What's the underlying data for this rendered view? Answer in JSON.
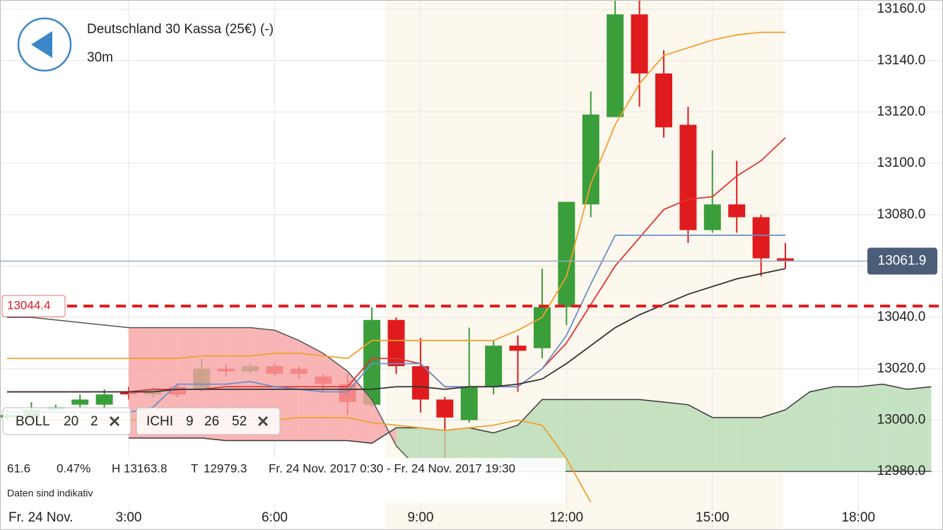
{
  "header": {
    "title": "Deutschland 30 Kassa (25€) (-)",
    "interval": "30m"
  },
  "indicators": [
    {
      "name": "BOLL",
      "params": [
        20,
        2
      ]
    },
    {
      "name": "ICHI",
      "params": [
        9,
        26,
        52
      ]
    }
  ],
  "info": {
    "change": 61.6,
    "change_pct": "0.47%",
    "high_label": "H",
    "high": 13163.8,
    "low_label": "T",
    "low": 12979.3,
    "range": "Fr. 24 Nov. 2017 0:30 - Fr. 24 Nov. 2017 19:30",
    "disclaimer": "Daten sind indikativ"
  },
  "chart_data": {
    "type": "candlestick",
    "date_label": "Fr. 24 Nov.",
    "x": [
      0.5,
      1,
      1.5,
      2,
      2.5,
      3,
      3.5,
      4,
      4.5,
      5,
      5.5,
      6,
      6.5,
      7,
      7.5,
      8,
      8.5,
      9,
      9.5,
      10,
      10.5,
      11,
      11.5,
      12,
      12.5,
      13,
      13.5,
      14,
      14.5,
      15,
      15.5,
      16,
      16.5
    ],
    "open": [
      13001,
      13001,
      13004,
      13006,
      13006,
      13011,
      13010,
      13013,
      13012,
      13020,
      13019,
      13021,
      13020,
      13017,
      13014,
      13006,
      13039,
      13021,
      13008,
      13000,
      13013,
      13029,
      13028,
      13044,
      13084,
      13118,
      13158,
      13135,
      13115,
      13074,
      13084,
      13079,
      13063
    ],
    "high": [
      13004,
      13007,
      13006,
      13010,
      13012,
      13013,
      13013,
      13014,
      13024,
      13022,
      13022,
      13022,
      13021,
      13018,
      13018,
      13044,
      13040,
      13032,
      13009,
      13036,
      13031,
      13033,
      13059,
      13085,
      13128,
      13164,
      13164,
      13144,
      13122,
      13105,
      13101,
      13080,
      13069
    ],
    "low": [
      13000,
      13000,
      13003,
      13005,
      13004,
      13008,
      13009,
      13009,
      13011,
      13017,
      13018,
      13017,
      13016,
      13011,
      13002,
      13005,
      13018,
      13003,
      12985,
      12999,
      13010,
      13011,
      13024,
      13037,
      13079,
      13118,
      13122,
      13110,
      13069,
      13073,
      13073,
      13056,
      13059
    ],
    "close": [
      13002,
      13004,
      13005,
      13008,
      13010,
      13010,
      13012,
      13010,
      13020,
      13019,
      13021,
      13018,
      13018,
      13014,
      13007,
      13039,
      13021,
      13008,
      13001,
      13013,
      13029,
      13027,
      13044,
      13085,
      13119,
      13158,
      13135,
      13114,
      13074,
      13084,
      13079,
      13063,
      13062
    ],
    "up_color": "#3a9e3a",
    "down_color": "#e01b1e",
    "series": [
      {
        "color": "#f0a030",
        "values": [
          13024,
          13024,
          13024,
          13024,
          13024,
          13024,
          13024,
          13024,
          13025,
          13025,
          13025,
          13026,
          13026,
          13025,
          13024,
          13031,
          13031,
          13031,
          13031,
          13031,
          13031,
          13035,
          13040,
          13056,
          13092,
          13115,
          13131,
          13142,
          13145,
          13148,
          13150,
          13151,
          13151
        ]
      },
      {
        "color": "#e03535",
        "values": [
          13011,
          13011,
          13011,
          13011,
          13011,
          13011,
          13012,
          13012,
          13012,
          13013,
          13013,
          13013,
          13013,
          13013,
          13013,
          13024,
          13024,
          13022,
          13013,
          13013,
          13013,
          13013,
          13020,
          13030,
          13045,
          13060,
          13071,
          13082,
          13086,
          13087,
          13095,
          13101,
          13110
        ]
      },
      {
        "color": "#f0a030",
        "values": [
          13000,
          13000,
          13000,
          13000,
          13000,
          13000,
          13000,
          13000,
          13000,
          13000,
          13000,
          13000,
          13001,
          13001,
          13001,
          12999,
          12998,
          12997,
          12996,
          12997,
          12998,
          13000,
          12998,
          12985,
          12968,
          null,
          null,
          null,
          null,
          null,
          null,
          null,
          null
        ]
      },
      {
        "color": "#6b8fc9",
        "values": [
          13003,
          13003,
          13003,
          13003,
          13003,
          13003,
          13005,
          13014,
          13014,
          13014,
          13015,
          13013,
          13012,
          13011,
          13011,
          13022,
          13022,
          13022,
          13013,
          13013,
          13013,
          13013,
          13020,
          13033,
          13053,
          13072,
          13072,
          13072,
          13072,
          13072,
          13072,
          13072,
          13072
        ]
      },
      {
        "color": "#333333",
        "values": [
          13011,
          13011,
          13011,
          13011,
          13011,
          13011,
          13011,
          13012,
          13012,
          13012,
          13012,
          13012,
          13012,
          13012,
          13012,
          13012,
          13013,
          13013,
          13012,
          13013,
          13013,
          13014,
          13016,
          13022,
          13029,
          13036,
          13041,
          13045,
          13049,
          13052,
          13055,
          13057,
          13059
        ]
      }
    ],
    "cloud": {
      "x": [
        0.5,
        1,
        1.5,
        2,
        2.5,
        3,
        3.5,
        4,
        4.5,
        5,
        5.5,
        6,
        6.5,
        7,
        7.5,
        8,
        8.5,
        9,
        9.5,
        10,
        10.5,
        11,
        11.5,
        12,
        12.5,
        13,
        13.5,
        14,
        14.5,
        15,
        15.5,
        16,
        16.5,
        17,
        17.5,
        18,
        18.5,
        19,
        19.5
      ],
      "up_color": "#b6dbb3",
      "down_color": "#f7a3a3",
      "line_color": "#3a3a3a",
      "span_a": [
        null,
        null,
        null,
        null,
        null,
        12993,
        12993,
        12993,
        12993,
        12992,
        12992,
        12992,
        12992,
        12992,
        12992,
        12991,
        12997,
        12997,
        12996,
        12997,
        12995,
        12998,
        13008,
        13008,
        13008,
        13008,
        13008,
        13007,
        13006,
        13001,
        13001,
        13001,
        13004,
        13011,
        13013,
        13013,
        13014,
        13012,
        13013
      ],
      "span_b": [
        13040,
        13040,
        13039,
        13038,
        13037,
        13036,
        13036,
        13036,
        13036,
        13036,
        13036,
        13035,
        13031,
        13026,
        13019,
        13008,
        12990,
        12980,
        12980,
        12980,
        12980,
        12980,
        12980,
        12980,
        12980,
        12980,
        12980,
        12980,
        12980,
        12980,
        12980,
        12980,
        12980,
        12980,
        12980,
        12980,
        12980,
        12980,
        12980
      ]
    },
    "current_price": 13061.9,
    "current_color": "#4b5d78",
    "support_level": 13044.4,
    "support_color": "#e01b1e",
    "xlim": [
      0.355,
      19.74
    ],
    "xticks": [
      {
        "value": 3,
        "label": "3:00"
      },
      {
        "value": 6,
        "label": "6:00"
      },
      {
        "value": 9,
        "label": "9:00"
      },
      {
        "value": 12,
        "label": "12:00"
      },
      {
        "value": 15,
        "label": "15:00"
      },
      {
        "value": 18,
        "label": "18:00"
      }
    ],
    "ylim": [
      12957.2,
      13163.6
    ],
    "yticks": [
      {
        "value": 12980,
        "label": "12980.0"
      },
      {
        "value": 13000,
        "label": "13000.0"
      },
      {
        "value": 13020,
        "label": "13020.0"
      },
      {
        "value": 13040,
        "label": "13040.0"
      },
      {
        "value": 13060,
        "label": "13060.0"
      },
      {
        "value": 13080,
        "label": "13080.0"
      },
      {
        "value": 13100,
        "label": "13100.0"
      },
      {
        "value": 13120,
        "label": "13120.0"
      },
      {
        "value": 13140,
        "label": "13140.0"
      },
      {
        "value": 13160,
        "label": "13160.0"
      }
    ],
    "grid": true
  }
}
